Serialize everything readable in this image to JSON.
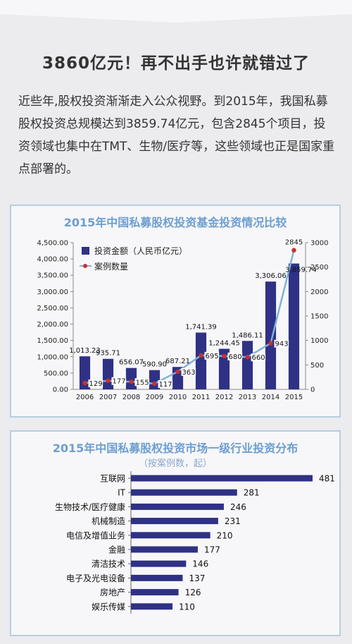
{
  "headline": "3860亿元！再不出手也许就错过了",
  "intro": "近些年,股权投资渐渐走入公众视野。到2015年，我国私募股权投资总规模达到3859.74亿元，包含2845个项目，投资领域也集中在TMT、生物/医疗等，这些领域也正是国家重点部署的。",
  "colors": {
    "bar": "#2f3185",
    "line": "#7fb2dd",
    "marker": "#c9302c",
    "title": "#6d9ed0"
  },
  "chart_data": [
    {
      "type": "bar",
      "title": "2015年中国私募股权投资基金投资情况比较",
      "categories": [
        "2006",
        "2007",
        "2008",
        "2009",
        "2010",
        "2011",
        "2012",
        "2013",
        "2014",
        "2015"
      ],
      "series": [
        {
          "name": "投资金额（人民币亿元）",
          "type": "bar",
          "axis": "left",
          "values": [
            1013.23,
            935.71,
            656.07,
            590.9,
            687.21,
            1741.39,
            1244.45,
            1486.11,
            3306.06,
            3859.74
          ],
          "labels": [
            "1,013.23",
            "935.71",
            "656.07",
            "590.90",
            "687.21",
            "1,741.39",
            "1,244.45",
            "1,486.11",
            "3,306.06",
            "3,859.74"
          ]
        },
        {
          "name": "案例数量",
          "type": "line",
          "axis": "right",
          "values": [
            129,
            177,
            155,
            117,
            363,
            695,
            680,
            660,
            943,
            2845
          ],
          "labels": [
            "129",
            "177",
            "155",
            "117",
            "363",
            "695",
            "680",
            "660",
            "943",
            "2845"
          ]
        }
      ],
      "ylim_left": [
        0,
        4500
      ],
      "yticks_left": [
        "0.00",
        "500.00",
        "1,000.00",
        "1,500.00",
        "2,000.00",
        "2,500.00",
        "3,000.00",
        "3,500.00",
        "4,000.00",
        "4,500.00"
      ],
      "ylim_right": [
        0,
        3000
      ],
      "yticks_right": [
        "0",
        "500",
        "1000",
        "1500",
        "2000",
        "2500",
        "3000"
      ],
      "legend": "top-left"
    },
    {
      "type": "bar",
      "orientation": "horizontal",
      "title": "2015年中国私募股权投资市场一级行业投资分布",
      "subtitle": "（按案例数，起）",
      "categories": [
        "互联网",
        "IT",
        "生物技术/医疗健康",
        "机械制造",
        "电信及增值业务",
        "金融",
        "清洁技术",
        "电子及光电设备",
        "房地产",
        "娱乐传媒"
      ],
      "values": [
        481,
        281,
        246,
        231,
        210,
        177,
        146,
        137,
        126,
        110
      ],
      "labels": [
        "481",
        "281",
        "246",
        "231",
        "210",
        "177",
        "146",
        "137",
        "126",
        "110"
      ]
    }
  ]
}
